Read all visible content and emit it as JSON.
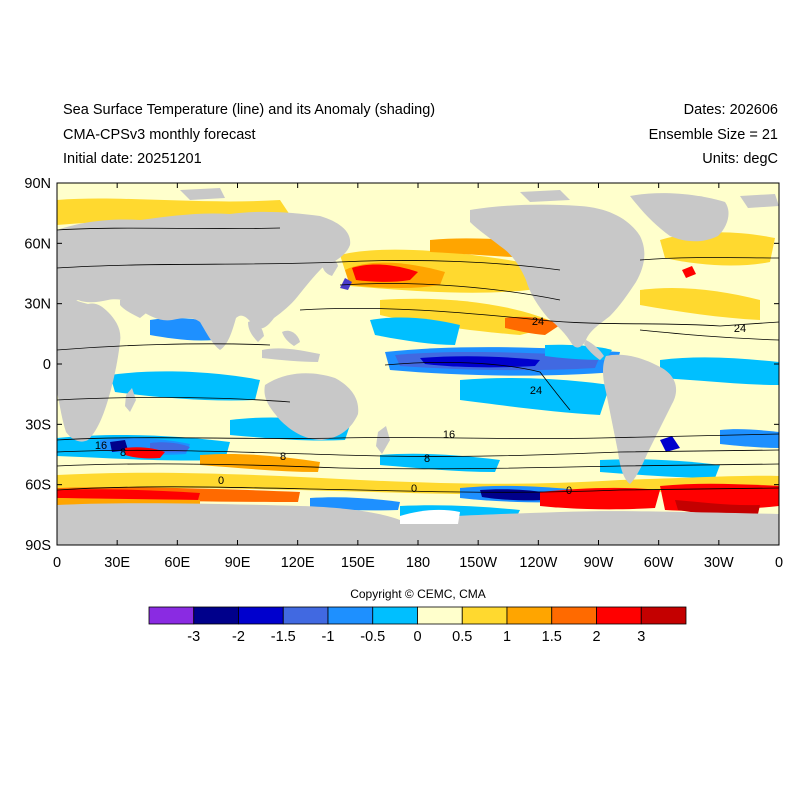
{
  "header": {
    "title": "Sea Surface Temperature (line) and its Anomaly (shading)",
    "subtitle": "CMA-CPSv3 monthly forecast",
    "initial_date": "Initial date: 20251201",
    "dates": "Dates: 202606",
    "ensemble": "Ensemble Size = 21",
    "units": "Units: degC"
  },
  "axes": {
    "lat_labels": [
      "90N",
      "60N",
      "30N",
      "0",
      "30S",
      "60S",
      "90S"
    ],
    "lon_labels": [
      "0",
      "30E",
      "60E",
      "90E",
      "120E",
      "150E",
      "180",
      "150W",
      "120W",
      "90W",
      "60W",
      "30W",
      "0"
    ]
  },
  "contour_labels": [
    "24",
    "24",
    "24",
    "16",
    "16",
    "8",
    "8",
    "8",
    "0",
    "0",
    "0"
  ],
  "copyright": "Copyright © CEMC, CMA",
  "colorbar": {
    "colors": [
      "#8a2be2",
      "#00008b",
      "#0000cd",
      "#4169e1",
      "#1e90ff",
      "#00bfff",
      "#ffffcc",
      "#ffd92f",
      "#ffa500",
      "#ff6a00",
      "#ff0000",
      "#c40000"
    ],
    "labels": [
      "-3",
      "-2",
      "-1.5",
      "-1",
      "-0.5",
      "0",
      "0.5",
      "1",
      "1.5",
      "2",
      "3"
    ]
  },
  "legend_colors": {
    "land": "#c8c8c8",
    "neutral": "#ffffcc"
  }
}
